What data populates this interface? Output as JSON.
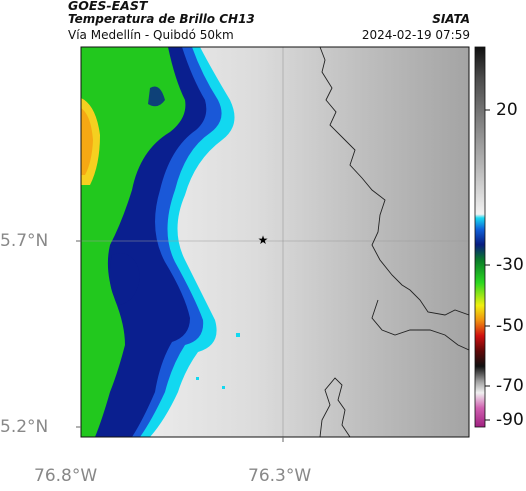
{
  "header": {
    "satellite": "GOES-EAST",
    "product": "Temperatura de Brillo CH13",
    "region": "Vía Medellín - Quibdó 50km",
    "organization": "SIATA",
    "timestamp": "2024-02-19 07:59"
  },
  "axes": {
    "lat_ticks": [
      "5.7°N",
      "5.2°N"
    ],
    "lon_ticks": [
      "76.8°W",
      "76.3°W"
    ]
  },
  "colorbar": {
    "labels": [
      "20",
      "-30",
      "-50",
      "-70",
      "-90"
    ]
  },
  "map": {
    "marker_icon": "star-icon",
    "colors": {
      "cold_band_green": "#22c81e",
      "cold_band_yellow_orange": "#f5a814",
      "deep_blue": "#0a1f8f",
      "cyan_edge": "#10d8f0",
      "warm_gray_light": "#e6e6e6",
      "warm_gray_dark": "#a6a6a6"
    }
  }
}
